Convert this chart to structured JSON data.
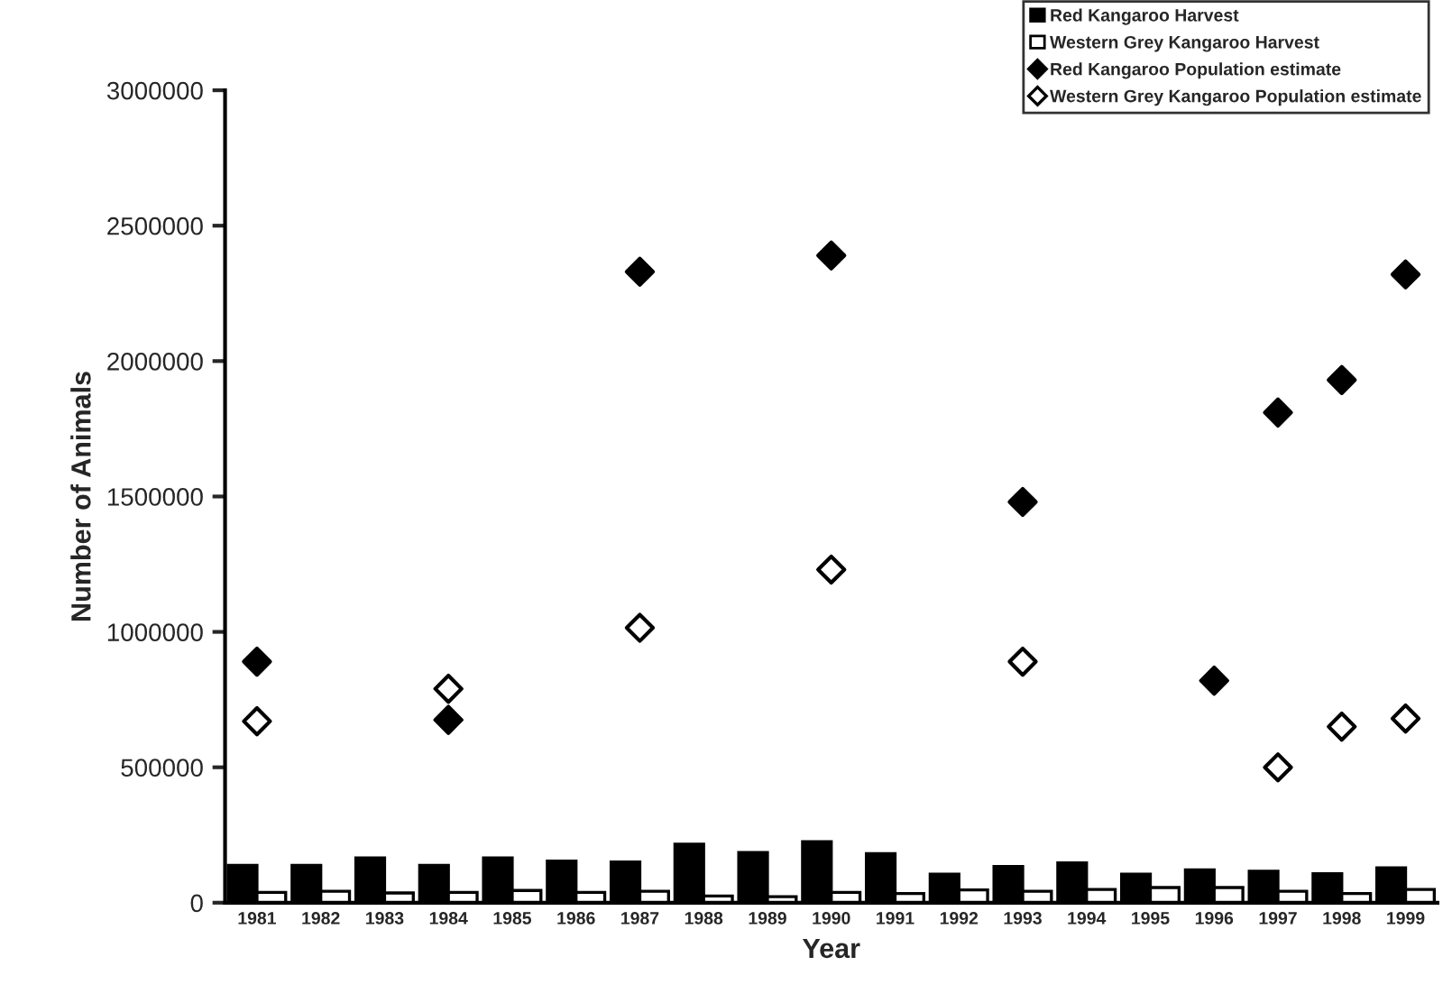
{
  "chart_data": {
    "type": "bar",
    "xlabel": "Year",
    "ylabel": "Number of Animals",
    "categories": [
      "1981",
      "1982",
      "1983",
      "1984",
      "1985",
      "1986",
      "1987",
      "1988",
      "1989",
      "1990",
      "1991",
      "1992",
      "1993",
      "1994",
      "1995",
      "1996",
      "1997",
      "1998",
      "1999"
    ],
    "series": [
      {
        "name": "Red Kangaroo Harvest",
        "color": "#000000",
        "values": [
          138000,
          138000,
          165000,
          138000,
          165000,
          154000,
          150000,
          216000,
          185000,
          225000,
          181000,
          105000,
          134000,
          147000,
          105000,
          121000,
          116000,
          107000,
          129000
        ]
      },
      {
        "name": "Western Grey Kangaroo Harvest",
        "color": "#ffffff",
        "values": [
          38000,
          42000,
          36000,
          38000,
          45000,
          38000,
          42000,
          25000,
          22000,
          38000,
          34000,
          47000,
          42000,
          49000,
          56000,
          56000,
          42000,
          34000,
          49000
        ]
      },
      {
        "name": "Red Kangaroo Population estimate",
        "type": "scatter",
        "color": "#000000",
        "marker": "diamond",
        "values": [
          890000,
          null,
          null,
          675000,
          null,
          null,
          2330000,
          null,
          null,
          2390000,
          null,
          null,
          1480000,
          null,
          null,
          820000,
          1810000,
          1930000,
          2320000
        ]
      },
      {
        "name": "Western Grey Kangaroo Population estimate",
        "type": "scatter",
        "color": "#ffffff",
        "marker": "diamond",
        "values": [
          670000,
          null,
          null,
          790000,
          null,
          null,
          1015000,
          null,
          null,
          1230000,
          null,
          null,
          890000,
          null,
          null,
          null,
          500000,
          650000,
          680000
        ]
      }
    ],
    "ylim": [
      0,
      3000000
    ],
    "yticks": [
      0,
      500000,
      1000000,
      1500000,
      2000000,
      2500000,
      3000000
    ],
    "grid": false,
    "legend": "top right"
  }
}
